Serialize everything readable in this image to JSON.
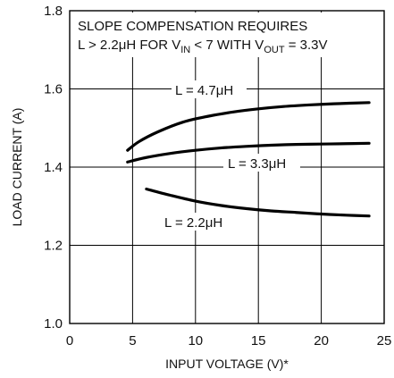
{
  "chart_data": {
    "type": "line",
    "title_lines": [
      "SLOPE COMPENSATION REQUIRES",
      "L > 2.2μH FOR V",
      "IN",
      " < 7 WITH V",
      "OUT",
      " = 3.3V"
    ],
    "xlabel": "INPUT VOLTAGE (V)*",
    "ylabel": "LOAD CURRENT (A)",
    "xlim": [
      0,
      25
    ],
    "ylim": [
      1.0,
      1.8
    ],
    "x_ticks": [
      "0",
      "5",
      "10",
      "15",
      "20",
      "25"
    ],
    "y_ticks": [
      "1.0",
      "1.2",
      "1.4",
      "1.6",
      "1.8"
    ],
    "grid": true,
    "series": [
      {
        "name": "L = 4.7μH",
        "x": [
          4.6,
          5.5,
          7,
          9,
          11,
          13,
          15,
          17,
          19,
          21,
          23.8
        ],
        "y": [
          1.443,
          1.465,
          1.49,
          1.515,
          1.53,
          1.541,
          1.549,
          1.555,
          1.559,
          1.562,
          1.565
        ]
      },
      {
        "name": "L = 3.3μH",
        "x": [
          4.6,
          6,
          8,
          10,
          12,
          14,
          16,
          18,
          20,
          22,
          23.8
        ],
        "y": [
          1.413,
          1.424,
          1.435,
          1.443,
          1.449,
          1.453,
          1.456,
          1.458,
          1.459,
          1.46,
          1.461
        ]
      },
      {
        "name": "L = 2.2μH",
        "x": [
          6.1,
          8,
          10,
          12,
          14,
          16,
          18,
          20,
          22,
          23.8
        ],
        "y": [
          1.344,
          1.328,
          1.313,
          1.302,
          1.294,
          1.288,
          1.284,
          1.28,
          1.277,
          1.275
        ]
      }
    ]
  }
}
